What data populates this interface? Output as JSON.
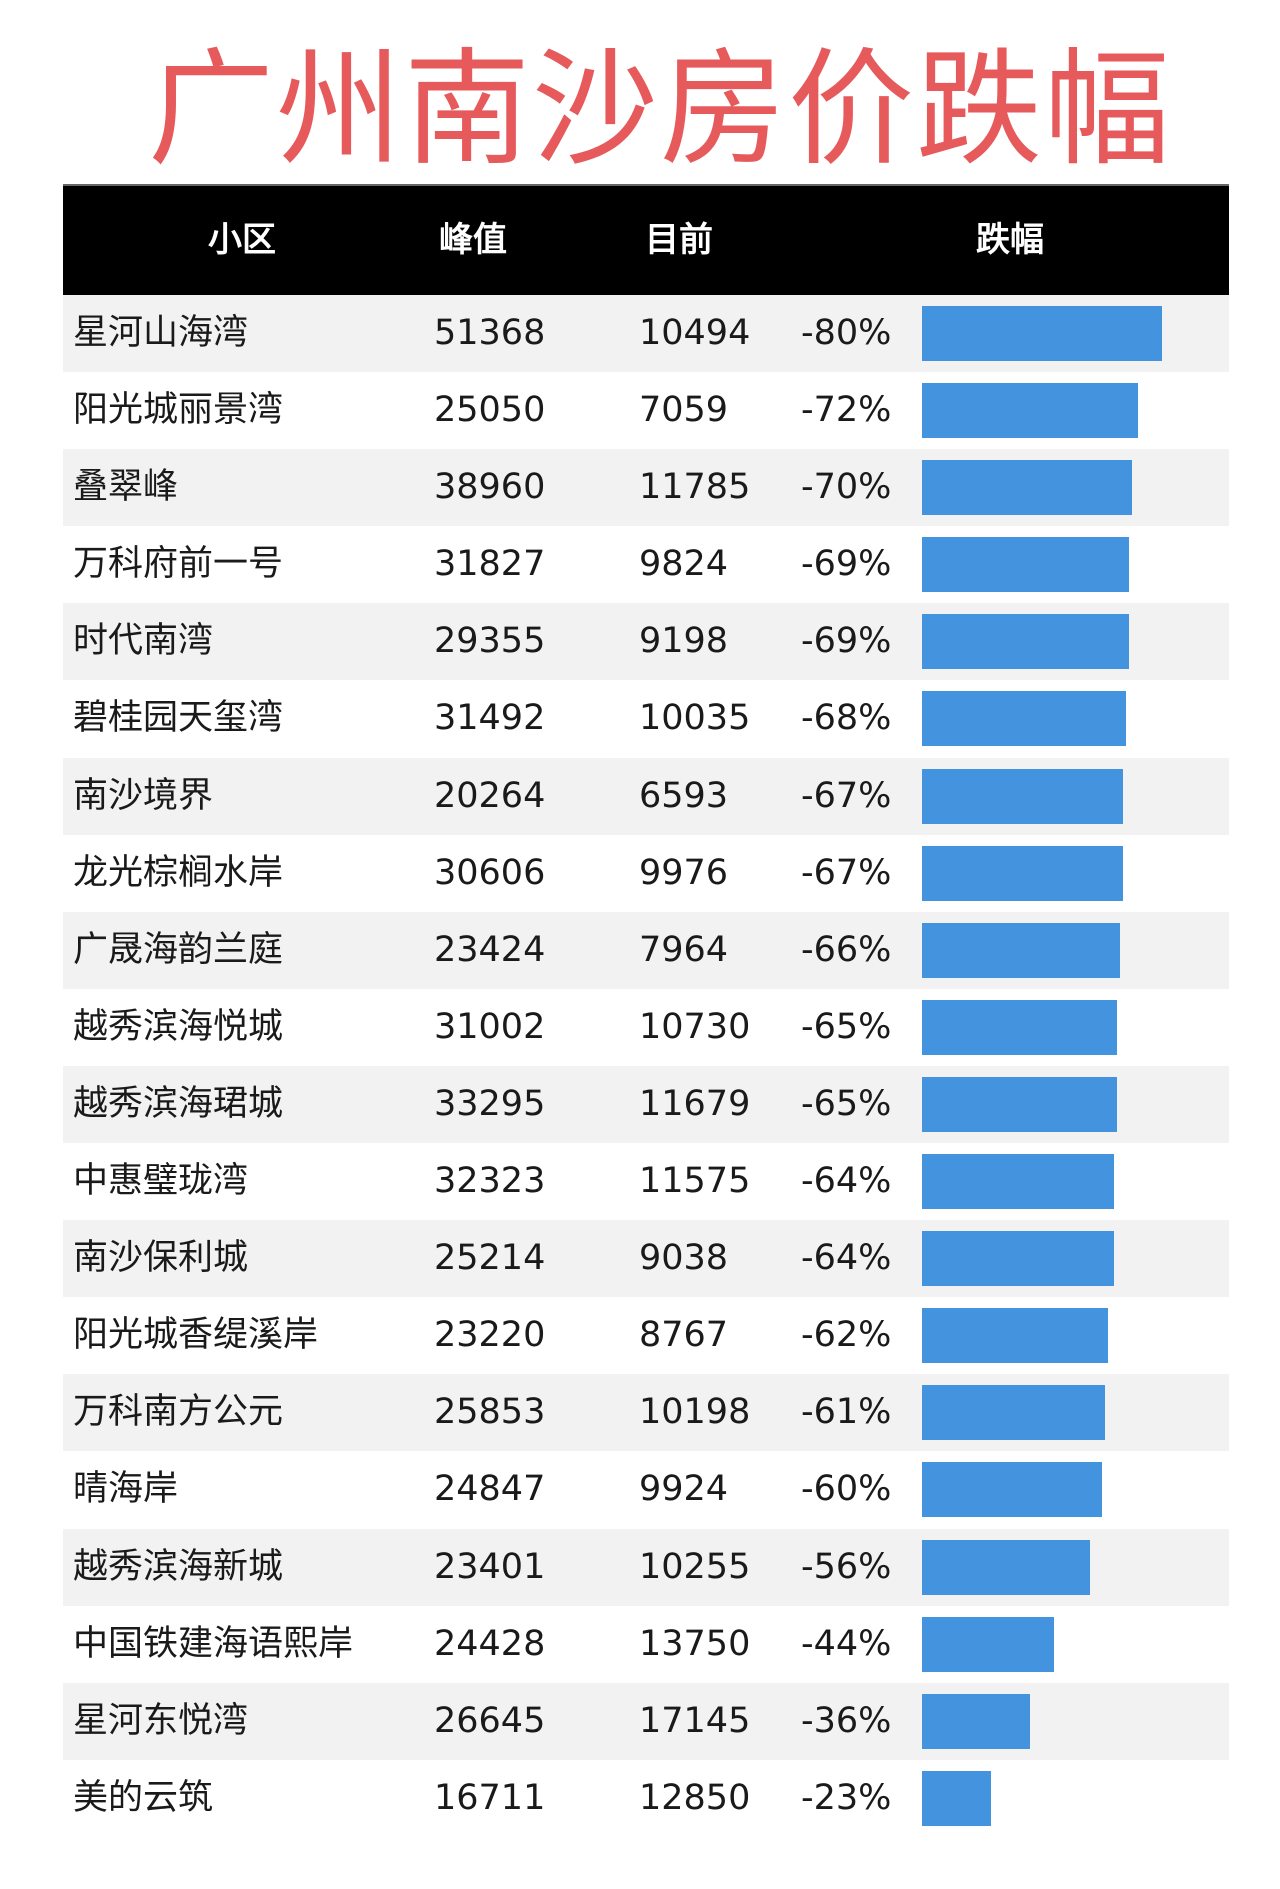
{
  "title": "广州南沙房价跌幅",
  "colors": {
    "title": "#e65a5c",
    "header_bg": "#000000",
    "bar": "#4393df",
    "row_alt": "#f2f2f2"
  },
  "table": {
    "headers": [
      "小区",
      "峰值",
      "目前",
      "跌幅"
    ],
    "rows": [
      {
        "name": "星河山海湾",
        "peak": "51368",
        "now": "10494",
        "pct": "-80%",
        "drop": 80
      },
      {
        "name": "阳光城丽景湾",
        "peak": "25050",
        "now": "7059",
        "pct": "-72%",
        "drop": 72
      },
      {
        "name": "叠翠峰",
        "peak": "38960",
        "now": "11785",
        "pct": "-70%",
        "drop": 70
      },
      {
        "name": "万科府前一号",
        "peak": "31827",
        "now": "9824",
        "pct": "-69%",
        "drop": 69
      },
      {
        "name": "时代南湾",
        "peak": "29355",
        "now": "9198",
        "pct": "-69%",
        "drop": 69
      },
      {
        "name": "碧桂园天玺湾",
        "peak": "31492",
        "now": "10035",
        "pct": "-68%",
        "drop": 68
      },
      {
        "name": "南沙境界",
        "peak": "20264",
        "now": "6593",
        "pct": "-67%",
        "drop": 67
      },
      {
        "name": "龙光棕榈水岸",
        "peak": "30606",
        "now": "9976",
        "pct": "-67%",
        "drop": 67
      },
      {
        "name": "广晟海韵兰庭",
        "peak": "23424",
        "now": "7964",
        "pct": "-66%",
        "drop": 66
      },
      {
        "name": "越秀滨海悦城",
        "peak": "31002",
        "now": "10730",
        "pct": "-65%",
        "drop": 65
      },
      {
        "name": "越秀滨海珺城",
        "peak": "33295",
        "now": "11679",
        "pct": "-65%",
        "drop": 65
      },
      {
        "name": "中惠璧珑湾",
        "peak": "32323",
        "now": "11575",
        "pct": "-64%",
        "drop": 64
      },
      {
        "name": "南沙保利城",
        "peak": "25214",
        "now": "9038",
        "pct": "-64%",
        "drop": 64
      },
      {
        "name": "阳光城香缇溪岸",
        "peak": "23220",
        "now": "8767",
        "pct": "-62%",
        "drop": 62
      },
      {
        "name": "万科南方公元",
        "peak": "25853",
        "now": "10198",
        "pct": "-61%",
        "drop": 61
      },
      {
        "name": "晴海岸",
        "peak": "24847",
        "now": "9924",
        "pct": "-60%",
        "drop": 60
      },
      {
        "name": "越秀滨海新城",
        "peak": "23401",
        "now": "10255",
        "pct": "-56%",
        "drop": 56
      },
      {
        "name": "中国铁建海语熙岸",
        "peak": "24428",
        "now": "13750",
        "pct": "-44%",
        "drop": 44
      },
      {
        "name": "星河东悦湾",
        "peak": "26645",
        "now": "17145",
        "pct": "-36%",
        "drop": 36
      },
      {
        "name": "美的云筑",
        "peak": "16711",
        "now": "12850",
        "pct": "-23%",
        "drop": 23
      }
    ]
  },
  "chart_data": {
    "type": "bar",
    "orientation": "horizontal",
    "title": "广州南沙房价跌幅",
    "categories": [
      "星河山海湾",
      "阳光城丽景湾",
      "叠翠峰",
      "万科府前一号",
      "时代南湾",
      "碧桂园天玺湾",
      "南沙境界",
      "龙光棕榈水岸",
      "广晟海韵兰庭",
      "越秀滨海悦城",
      "越秀滨海珺城",
      "中惠璧珑湾",
      "南沙保利城",
      "阳光城香缇溪岸",
      "万科南方公元",
      "晴海岸",
      "越秀滨海新城",
      "中国铁建海语熙岸",
      "星河东悦湾",
      "美的云筑"
    ],
    "series": [
      {
        "name": "峰值",
        "values": [
          51368,
          25050,
          38960,
          31827,
          29355,
          31492,
          20264,
          30606,
          23424,
          31002,
          33295,
          32323,
          25214,
          23220,
          25853,
          24847,
          23401,
          24428,
          26645,
          16711
        ]
      },
      {
        "name": "目前",
        "values": [
          10494,
          7059,
          11785,
          9824,
          9198,
          10035,
          6593,
          9976,
          7964,
          10730,
          11679,
          11575,
          9038,
          8767,
          10198,
          9924,
          10255,
          13750,
          17145,
          12850
        ]
      },
      {
        "name": "跌幅",
        "values": [
          -80,
          -72,
          -70,
          -69,
          -69,
          -68,
          -67,
          -67,
          -66,
          -65,
          -65,
          -64,
          -64,
          -62,
          -61,
          -60,
          -56,
          -44,
          -36,
          -23
        ]
      }
    ],
    "xlabel": "",
    "ylabel": "",
    "columns": [
      "小区",
      "峰值",
      "目前",
      "跌幅"
    ],
    "grid": false,
    "legend": "none"
  }
}
